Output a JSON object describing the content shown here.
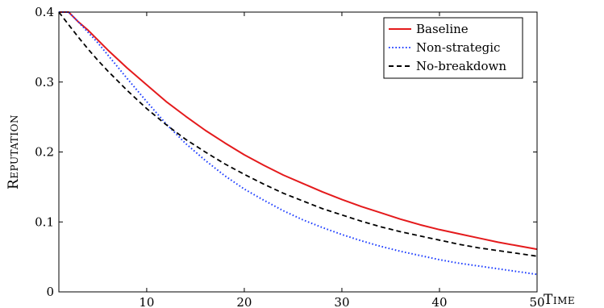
{
  "chart_data": {
    "type": "line",
    "title": "",
    "xlabel": "Time",
    "ylabel": "Reputation",
    "xlim": [
      1,
      50
    ],
    "ylim": [
      0,
      0.4
    ],
    "x_ticks": [
      10,
      20,
      30,
      40,
      50
    ],
    "x_tick_labels": [
      "10",
      "20",
      "30",
      "40",
      "50"
    ],
    "y_ticks": [
      0,
      0.1,
      0.2,
      0.3,
      0.4
    ],
    "y_tick_labels": [
      "0",
      "0.1",
      "0.2",
      "0.3",
      "0.4"
    ],
    "grid": false,
    "legend_position": "top-right",
    "x": [
      1,
      2,
      3,
      4,
      5,
      6,
      8,
      10,
      12,
      14,
      16,
      18,
      20,
      22,
      24,
      26,
      28,
      30,
      32,
      34,
      36,
      38,
      40,
      42,
      44,
      46,
      48,
      50
    ],
    "series": [
      {
        "name": "Baseline",
        "color": "#e41a1c",
        "dash": "solid",
        "values": [
          0.4,
          0.4,
          0.386,
          0.374,
          0.36,
          0.346,
          0.32,
          0.296,
          0.272,
          0.251,
          0.231,
          0.213,
          0.196,
          0.181,
          0.167,
          0.155,
          0.143,
          0.132,
          0.122,
          0.113,
          0.104,
          0.096,
          0.089,
          0.083,
          0.077,
          0.071,
          0.066,
          0.061
        ]
      },
      {
        "name": "Non-strategic",
        "color": "#1f3fff",
        "dash": "dotted",
        "values": [
          0.4,
          0.4,
          0.386,
          0.371,
          0.356,
          0.339,
          0.305,
          0.272,
          0.24,
          0.212,
          0.188,
          0.166,
          0.147,
          0.131,
          0.116,
          0.103,
          0.092,
          0.082,
          0.073,
          0.065,
          0.058,
          0.052,
          0.046,
          0.041,
          0.037,
          0.033,
          0.029,
          0.025
        ]
      },
      {
        "name": "No-breakdown",
        "color": "#000000",
        "dash": "dashed",
        "values": [
          0.4,
          0.382,
          0.364,
          0.347,
          0.331,
          0.316,
          0.288,
          0.262,
          0.239,
          0.218,
          0.2,
          0.183,
          0.168,
          0.154,
          0.141,
          0.13,
          0.119,
          0.11,
          0.101,
          0.093,
          0.086,
          0.08,
          0.074,
          0.068,
          0.063,
          0.059,
          0.055,
          0.051
        ]
      }
    ]
  }
}
